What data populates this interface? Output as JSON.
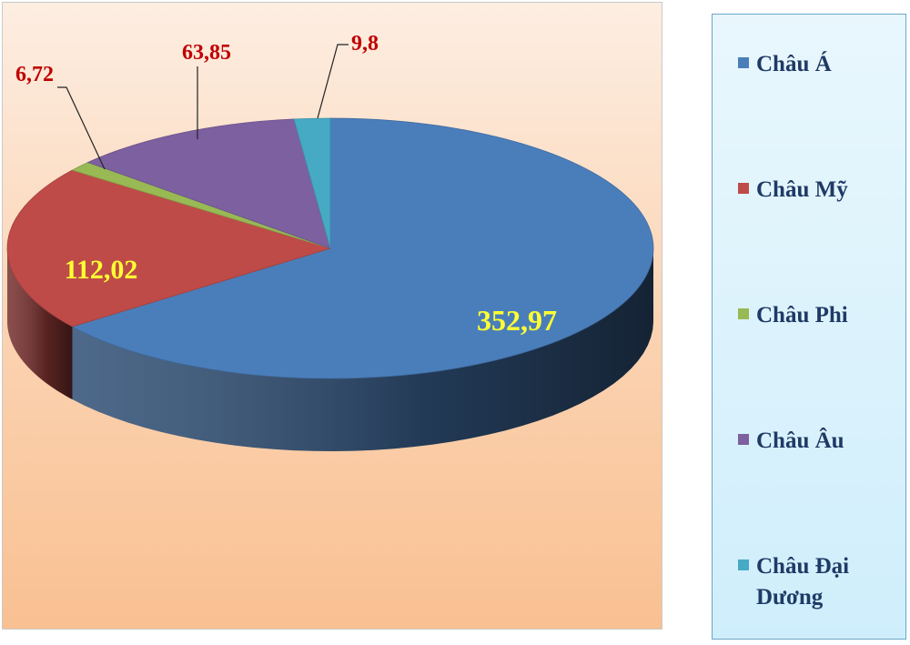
{
  "chart_data": {
    "type": "pie",
    "title": "",
    "slices": [
      {
        "name": "Châu Á",
        "value": 352.97,
        "label": "352,97",
        "color": "#4a7ebb"
      },
      {
        "name": "Châu Mỹ",
        "value": 112.02,
        "label": "112,02",
        "color": "#be4b48"
      },
      {
        "name": "Châu Phi",
        "value": 6.72,
        "label": "6,72",
        "color": "#98b954"
      },
      {
        "name": "Châu Âu",
        "value": 63.85,
        "label": "63,85",
        "color": "#7d60a0"
      },
      {
        "name": "Châu Đại Dương",
        "value": 9.8,
        "label": "9,8",
        "color": "#46aac5"
      }
    ],
    "legend_position": "right",
    "style": "3d-pie"
  },
  "label_colors": {
    "inside": "#ffff33",
    "outside": "#c00000"
  }
}
